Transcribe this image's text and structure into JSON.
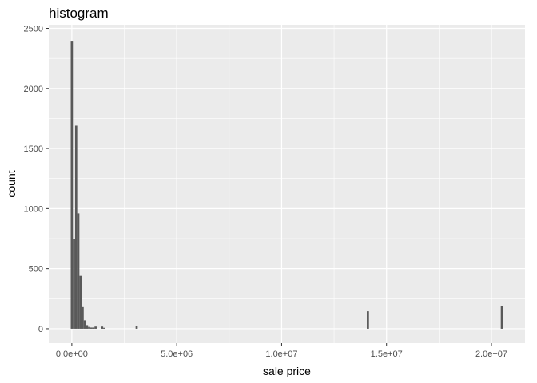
{
  "chart_data": {
    "type": "bar",
    "title": "histogram",
    "xlabel": "sale price",
    "ylabel": "count",
    "xlim": [
      -1100000,
      21600000
    ],
    "ylim": [
      -120,
      2530
    ],
    "x_ticks": [
      {
        "value": 0,
        "label": "0.0e+00"
      },
      {
        "value": 5000000,
        "label": "5.0e+06"
      },
      {
        "value": 10000000,
        "label": "1.0e+07"
      },
      {
        "value": 15000000,
        "label": "1.5e+07"
      },
      {
        "value": 20000000,
        "label": "2.0e+07"
      }
    ],
    "y_ticks": [
      {
        "value": 0,
        "label": "0"
      },
      {
        "value": 500,
        "label": "500"
      },
      {
        "value": 1000,
        "label": "1000"
      },
      {
        "value": 1500,
        "label": "1500"
      },
      {
        "value": 2000,
        "label": "2000"
      },
      {
        "value": 2500,
        "label": "2500"
      }
    ],
    "bin_width": 103000,
    "bins": [
      {
        "x": 0,
        "count": 2390
      },
      {
        "x": 103000,
        "count": 750
      },
      {
        "x": 206000,
        "count": 1690
      },
      {
        "x": 309000,
        "count": 960
      },
      {
        "x": 412000,
        "count": 440
      },
      {
        "x": 515000,
        "count": 180
      },
      {
        "x": 618000,
        "count": 70
      },
      {
        "x": 721000,
        "count": 30
      },
      {
        "x": 824000,
        "count": 15
      },
      {
        "x": 927000,
        "count": 10
      },
      {
        "x": 1030000,
        "count": 10
      },
      {
        "x": 1133000,
        "count": 18
      },
      {
        "x": 1442000,
        "count": 18
      },
      {
        "x": 1545000,
        "count": 8
      },
      {
        "x": 3090000,
        "count": 22
      },
      {
        "x": 14111000,
        "count": 145
      },
      {
        "x": 20497000,
        "count": 190
      }
    ],
    "grid": true,
    "colors": {
      "panel": "#ebebeb",
      "grid_major": "#ffffff",
      "bar": "#595959",
      "tick": "#333333"
    }
  }
}
